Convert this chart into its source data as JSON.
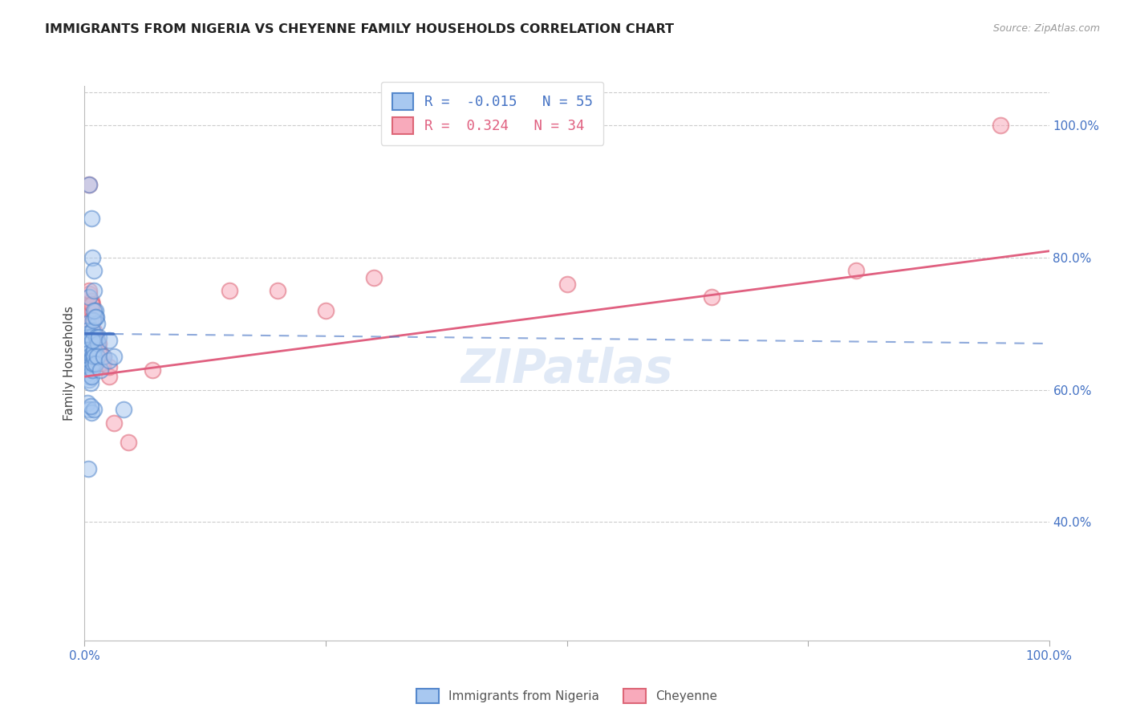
{
  "title": "IMMIGRANTS FROM NIGERIA VS CHEYENNE FAMILY HOUSEHOLDS CORRELATION CHART",
  "source": "Source: ZipAtlas.com",
  "ylabel": "Family Households",
  "right_yticks": [
    40.0,
    60.0,
    80.0,
    100.0
  ],
  "xmin": 0.0,
  "xmax": 100.0,
  "ymin": 22.0,
  "ymax": 106.0,
  "blue_R": -0.015,
  "blue_N": 55,
  "pink_R": 0.324,
  "pink_N": 34,
  "blue_face": "#A8C8F0",
  "blue_edge": "#5588CC",
  "pink_face": "#F8AABB",
  "pink_edge": "#DD6677",
  "blue_line_color": "#4472C4",
  "pink_line_color": "#E06080",
  "watermark_text": "ZIPatlas",
  "watermark_color": "#C8D8F0",
  "blue_x": [
    0.3,
    0.5,
    0.5,
    0.7,
    0.8,
    1.0,
    1.0,
    1.1,
    1.2,
    1.3,
    0.2,
    0.3,
    0.4,
    0.5,
    0.6,
    0.7,
    0.8,
    0.9,
    1.0,
    1.1,
    0.3,
    0.4,
    0.5,
    0.6,
    0.7,
    0.8,
    0.9,
    1.0,
    1.2,
    1.4,
    0.2,
    0.3,
    0.4,
    0.5,
    0.6,
    0.7,
    0.8,
    0.9,
    1.0,
    1.1,
    0.3,
    0.5,
    0.7,
    1.0,
    1.3,
    1.6,
    2.0,
    2.5,
    3.0,
    4.0,
    0.4,
    0.6,
    0.8,
    1.5,
    2.5
  ],
  "blue_y": [
    70.0,
    74.0,
    91.0,
    86.0,
    80.0,
    78.0,
    75.0,
    72.0,
    71.0,
    70.0,
    69.0,
    68.5,
    68.0,
    67.5,
    67.0,
    68.0,
    69.0,
    70.5,
    72.0,
    71.0,
    66.0,
    65.5,
    65.0,
    64.5,
    64.0,
    65.0,
    65.5,
    66.0,
    68.0,
    67.0,
    63.0,
    62.5,
    62.0,
    61.5,
    61.0,
    62.0,
    63.0,
    64.0,
    65.0,
    64.0,
    58.0,
    57.0,
    56.5,
    57.0,
    65.0,
    63.0,
    65.0,
    64.5,
    65.0,
    57.0,
    48.0,
    57.5,
    67.5,
    68.0,
    67.5
  ],
  "pink_x": [
    0.3,
    0.5,
    0.5,
    0.7,
    0.8,
    1.0,
    1.2,
    1.5,
    1.8,
    2.0,
    0.4,
    0.6,
    0.8,
    1.0,
    1.3,
    1.8,
    2.5,
    0.5,
    0.7,
    1.0,
    1.5,
    2.0,
    2.5,
    3.0,
    4.5,
    7.0,
    15.0,
    20.0,
    25.0,
    30.0,
    50.0,
    65.0,
    80.0,
    95.0
  ],
  "pink_y": [
    72.0,
    74.5,
    91.0,
    73.5,
    72.0,
    71.0,
    68.0,
    67.0,
    65.0,
    64.0,
    70.0,
    70.5,
    73.0,
    69.0,
    67.5,
    64.0,
    62.0,
    75.0,
    73.0,
    68.0,
    66.0,
    65.0,
    63.5,
    55.0,
    52.0,
    63.0,
    75.0,
    75.0,
    72.0,
    77.0,
    76.0,
    74.0,
    78.0,
    100.0
  ]
}
